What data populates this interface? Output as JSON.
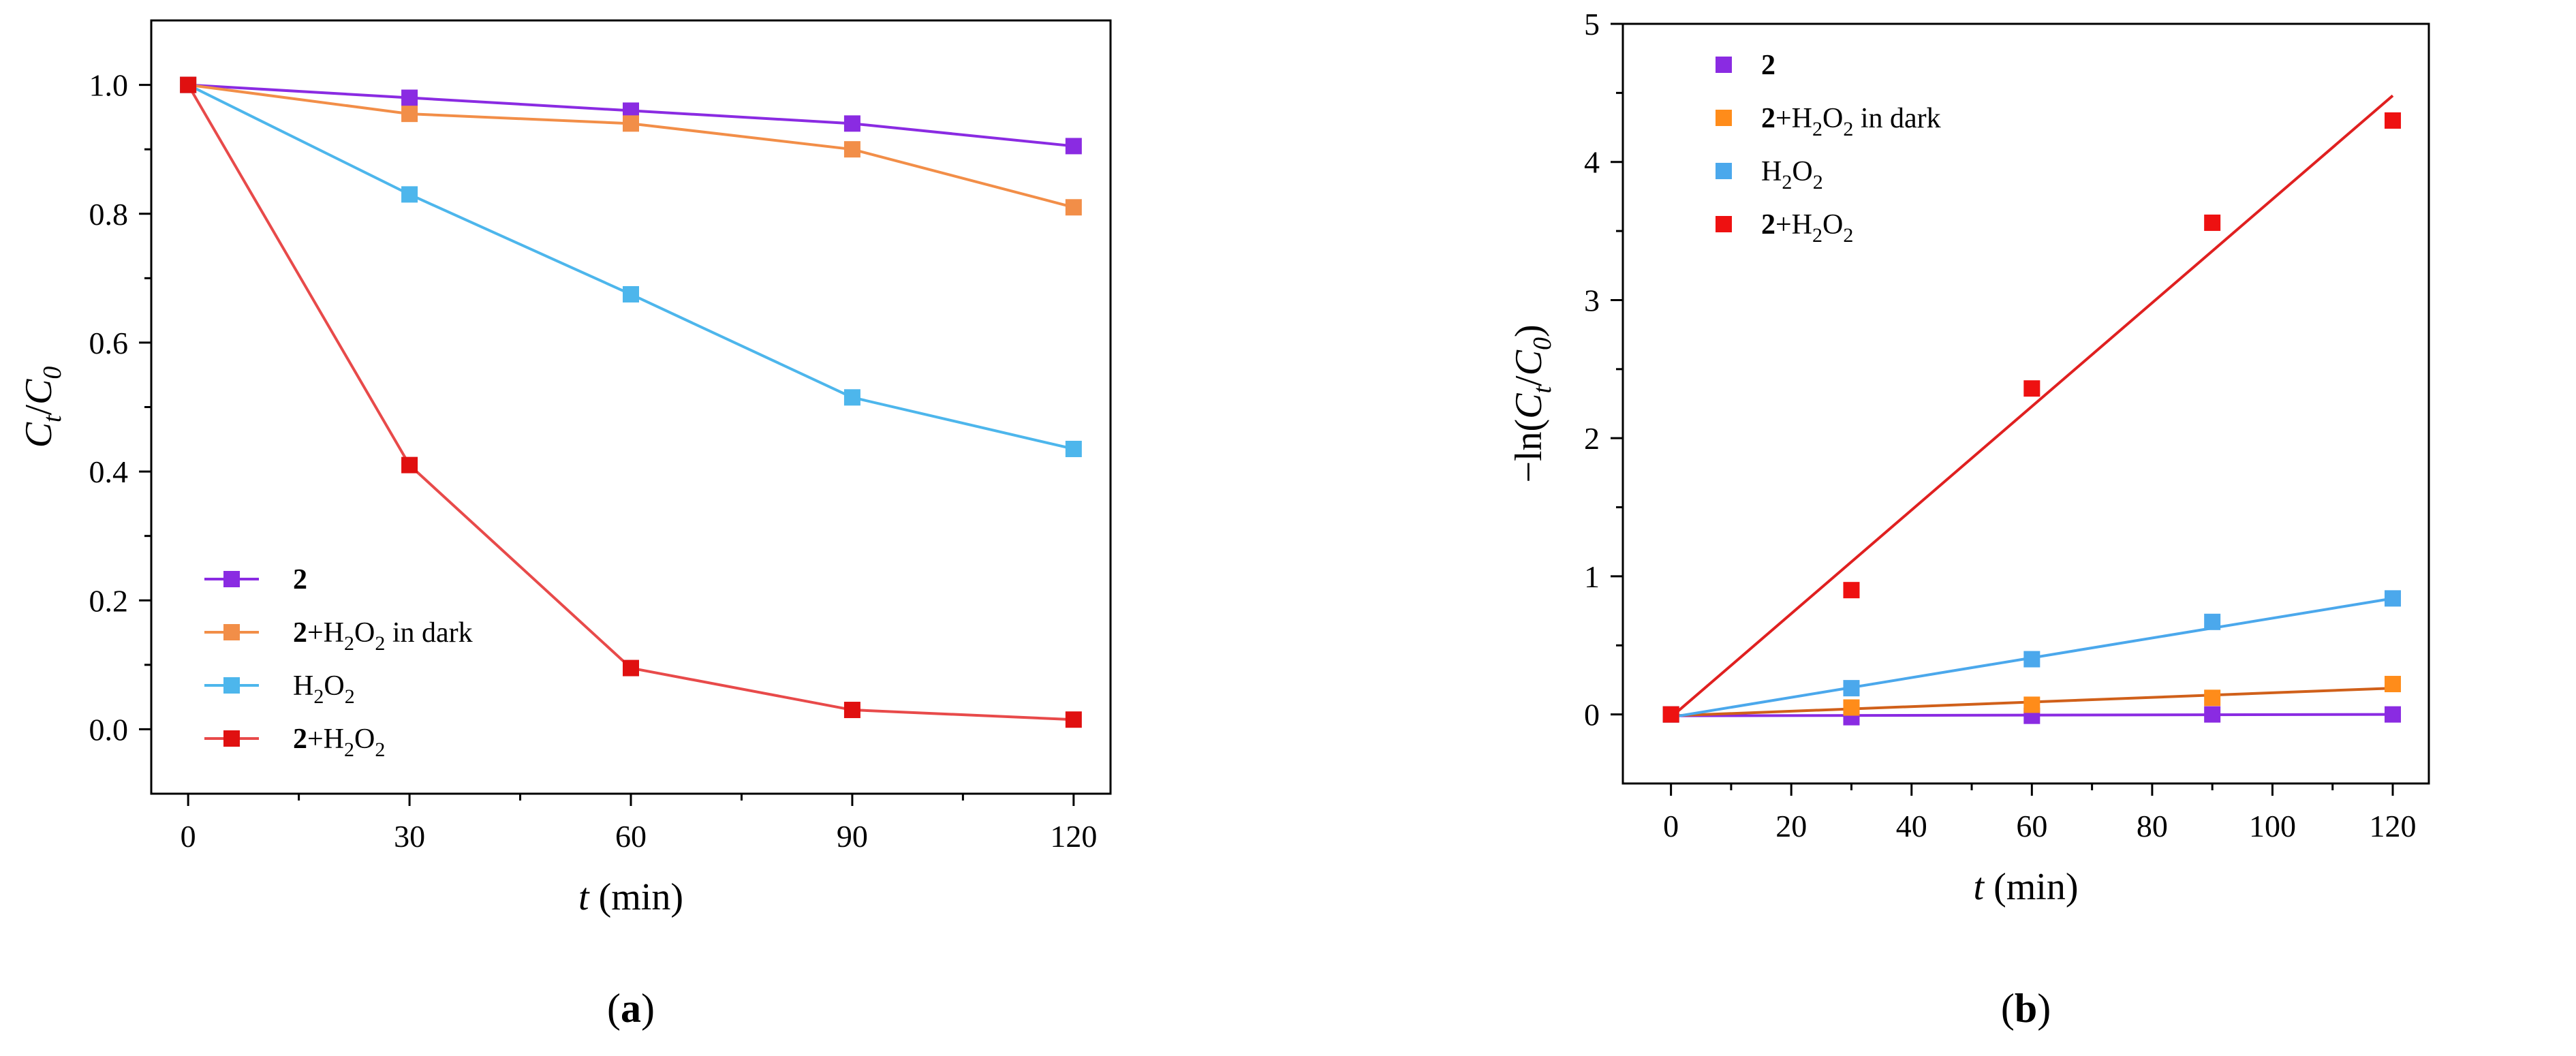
{
  "chart_data": [
    {
      "type": "line",
      "panel": "(a)",
      "panel_label_text": {
        "open": "(",
        "letter": "a",
        "close": ")"
      },
      "xlabel": {
        "italic": "t",
        "rest": " (min)"
      },
      "ylabel": {
        "main": "C",
        "sub": "t",
        "slash": "/",
        "main2": "C",
        "sub2": "0"
      },
      "x_ticks": [
        0,
        30,
        60,
        90,
        120
      ],
      "y_ticks": [
        "0.0",
        "0.2",
        "0.4",
        "0.6",
        "0.8",
        "1.0"
      ],
      "xlim": [
        -5,
        125
      ],
      "ylim": [
        -0.1,
        1.1
      ],
      "legend_position": "bottom-left",
      "x": [
        0,
        30,
        60,
        90,
        120
      ],
      "series": [
        {
          "name": "2",
          "label": {
            "bold": "2",
            "rest": ""
          },
          "color": "#8a2be2",
          "values": [
            1.0,
            0.98,
            0.96,
            0.94,
            0.905
          ]
        },
        {
          "name": "2+H2O2 in dark",
          "label": {
            "bold": "2",
            "rest": "+H",
            "sub1": "2",
            "mid": "O",
            "sub2": "2",
            "tail": " in dark"
          },
          "color": "#f28e48",
          "values": [
            1.0,
            0.955,
            0.94,
            0.9,
            0.81
          ]
        },
        {
          "name": "H2O2",
          "label": {
            "bold": "",
            "rest": "H",
            "sub1": "2",
            "mid": "O",
            "sub2": "2",
            "tail": ""
          },
          "color": "#4db6ec",
          "values": [
            1.0,
            0.83,
            0.675,
            0.515,
            0.435
          ]
        },
        {
          "name": "2+H2O2",
          "label": {
            "bold": "2",
            "rest": "+H",
            "sub1": "2",
            "mid": "O",
            "sub2": "2",
            "tail": ""
          },
          "color": "#e84a4a",
          "marker_color": "#e01010",
          "values": [
            1.0,
            0.41,
            0.095,
            0.03,
            0.015
          ]
        }
      ]
    },
    {
      "type": "scatter",
      "panel": "(b)",
      "panel_label_text": {
        "open": "(",
        "letter": "b",
        "close": ")"
      },
      "xlabel": {
        "italic": "t",
        "rest": " (min)"
      },
      "ylabel": {
        "pre": "−ln(",
        "main": "C",
        "sub": "t",
        "slash": "/",
        "main2": "C",
        "sub2": "0",
        "post": ")"
      },
      "x_ticks": [
        0,
        20,
        40,
        60,
        80,
        100,
        120
      ],
      "y_ticks": [
        0,
        1,
        2,
        3,
        4,
        5
      ],
      "xlim": [
        -8,
        126
      ],
      "ylim": [
        -0.5,
        5
      ],
      "legend_position": "top-left",
      "x": [
        0,
        30,
        60,
        90,
        120
      ],
      "series": [
        {
          "name": "2",
          "label": {
            "bold": "2",
            "rest": ""
          },
          "color": "#8a2be2",
          "values": [
            0,
            -0.02,
            -0.01,
            0.0,
            0.0
          ],
          "fit": [
            -0.01,
            0.0
          ]
        },
        {
          "name": "2+H2O2 in dark",
          "label": {
            "bold": "2",
            "rest": "+H",
            "sub1": "2",
            "mid": "O",
            "sub2": "2",
            "tail": " in dark"
          },
          "color": "#ff8c1a",
          "line_color": "#d0601a",
          "values": [
            0,
            0.05,
            0.07,
            0.12,
            0.22
          ],
          "fit": [
            -0.01,
            0.19
          ]
        },
        {
          "name": "H2O2",
          "label": {
            "bold": "",
            "rest": "H",
            "sub1": "2",
            "mid": "O",
            "sub2": "2",
            "tail": ""
          },
          "color": "#4ba8ec",
          "values": [
            0,
            0.19,
            0.4,
            0.67,
            0.84
          ],
          "fit": [
            -0.02,
            0.84
          ]
        },
        {
          "name": "2+H2O2",
          "label": {
            "bold": "2",
            "rest": "+H",
            "sub1": "2",
            "mid": "O",
            "sub2": "2",
            "tail": ""
          },
          "color": "#ee1111",
          "line_color": "#e02020",
          "values": [
            0,
            0.9,
            2.36,
            3.56,
            4.3
          ],
          "fit": [
            -0.02,
            4.48
          ]
        }
      ]
    }
  ]
}
